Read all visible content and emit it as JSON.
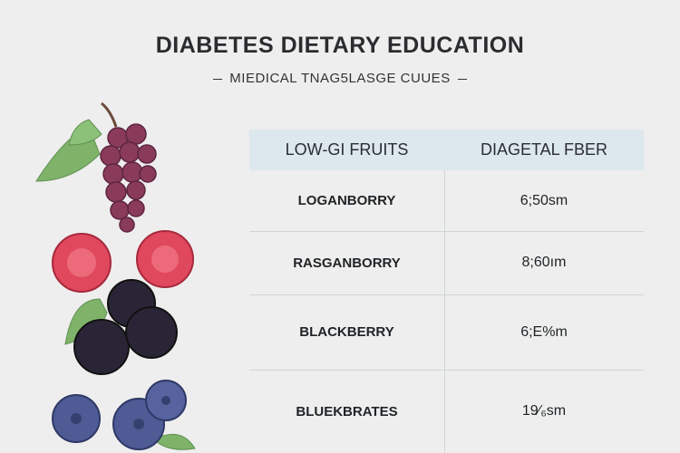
{
  "header": {
    "title": "DIABETES DIETARY EDUCATION",
    "subtitle": "MIEDICAL TNAG5LASGE CUUES"
  },
  "table": {
    "columns": [
      "LOW-GI FRUITS",
      "DIAGETAL FBER"
    ],
    "rows": [
      [
        "LOGANBORRY",
        "6;50sm"
      ],
      [
        "RASGANBORRY",
        "8;60ım"
      ],
      [
        "BLACKBERRY",
        "6;E%m"
      ],
      [
        "BLUEKBRATES",
        "19⁄₆sm"
      ]
    ]
  }
}
